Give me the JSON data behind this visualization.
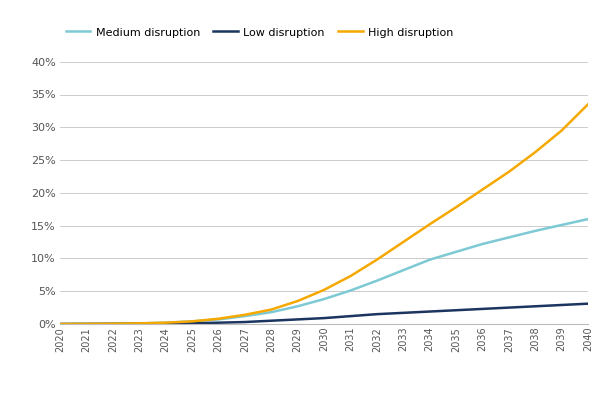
{
  "years": [
    2020,
    2021,
    2022,
    2023,
    2024,
    2025,
    2026,
    2027,
    2028,
    2029,
    2030,
    2031,
    2032,
    2033,
    2034,
    2035,
    2036,
    2037,
    2038,
    2039,
    2040
  ],
  "medium": [
    0.0,
    0.0002,
    0.0005,
    0.001,
    0.002,
    0.004,
    0.007,
    0.012,
    0.018,
    0.027,
    0.038,
    0.051,
    0.066,
    0.082,
    0.098,
    0.11,
    0.122,
    0.132,
    0.142,
    0.151,
    0.16
  ],
  "low": [
    0.0,
    0.0001,
    0.0002,
    0.0004,
    0.0008,
    0.001,
    0.002,
    0.003,
    0.005,
    0.007,
    0.009,
    0.012,
    0.015,
    0.017,
    0.019,
    0.021,
    0.023,
    0.025,
    0.027,
    0.029,
    0.031
  ],
  "high": [
    0.0,
    0.0002,
    0.0005,
    0.001,
    0.002,
    0.004,
    0.008,
    0.014,
    0.022,
    0.035,
    0.052,
    0.073,
    0.098,
    0.125,
    0.152,
    0.178,
    0.205,
    0.232,
    0.262,
    0.295,
    0.335
  ],
  "medium_color": "#7DC9D4",
  "low_color": "#1B3560",
  "high_color": "#F5A800",
  "medium_label": "Medium disruption",
  "low_label": "Low disruption",
  "high_label": "High disruption",
  "ylim": [
    0,
    0.42
  ],
  "yticks": [
    0.0,
    0.05,
    0.1,
    0.15,
    0.2,
    0.25,
    0.3,
    0.35,
    0.4
  ],
  "background_color": "#FFFFFF",
  "grid_color": "#CCCCCC",
  "linewidth": 1.8
}
